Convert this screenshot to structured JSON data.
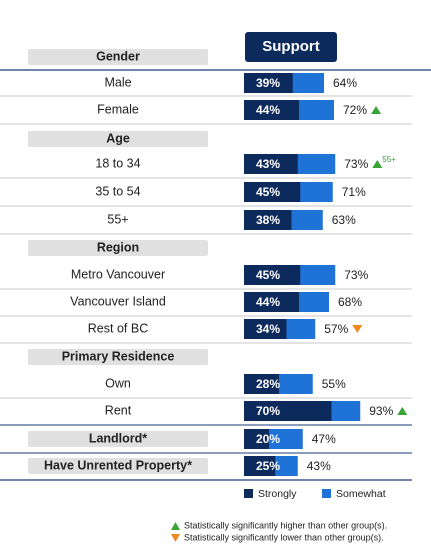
{
  "chart_data": {
    "type": "bar",
    "title": "Support",
    "groups": [
      "Gender",
      "Age",
      "Region",
      "Primary Residence"
    ],
    "categories": [
      "Male",
      "Female",
      "18 to 34",
      "35 to 54",
      "55+",
      "Metro Vancouver",
      "Vancouver Island",
      "Rest of BC",
      "Own",
      "Rent",
      "Landlord*",
      "Have Unrented Property*"
    ],
    "series": [
      {
        "name": "Strongly",
        "color": "#0d2a5c",
        "values": [
          39,
          44,
          43,
          45,
          38,
          45,
          44,
          34,
          28,
          70,
          20,
          25
        ],
        "value_labels": [
          "39%",
          "44%",
          "43%",
          "45%",
          "38%",
          "45%",
          "44%",
          "34%",
          "28%",
          "70%",
          "20%",
          "25%"
        ]
      },
      {
        "name": "Somewhat",
        "color": "#1f72d6",
        "values": [
          64,
          72,
          73,
          71,
          63,
          73,
          68,
          57,
          55,
          93,
          47,
          43
        ],
        "value_labels": [
          "64%",
          "72%",
          "73%",
          "71%",
          "63%",
          "73%",
          "68%",
          "57%",
          "55%",
          "93%",
          "47%",
          "43%"
        ]
      }
    ],
    "significance": [
      null,
      "up",
      "up",
      null,
      null,
      null,
      null,
      "down",
      null,
      "up",
      null,
      null
    ],
    "significance_notes": [
      null,
      null,
      "55+",
      null,
      null,
      null,
      null,
      null,
      null,
      null,
      null,
      null
    ],
    "notes": {
      "up": "Statistically significantly higher than other group(s).",
      "down": "Statistically significantly lower than other group(s)."
    },
    "marker_colors": {
      "up": "#3aa335",
      "down": "#f08a1e"
    }
  }
}
